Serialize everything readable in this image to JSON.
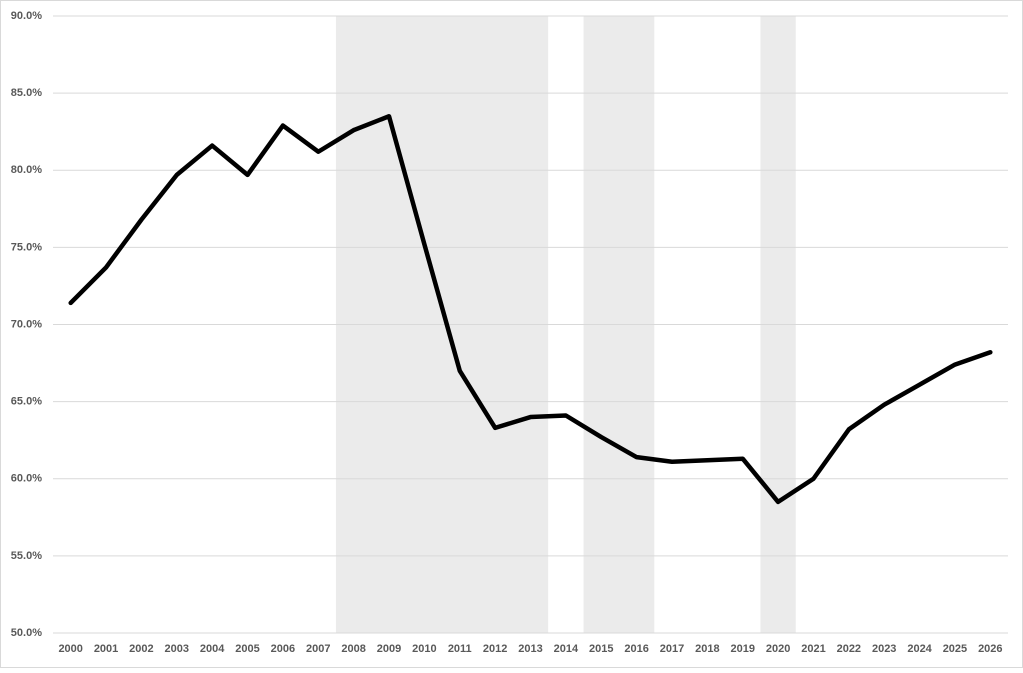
{
  "chart_data": {
    "type": "line",
    "categories": [
      "2000",
      "2001",
      "2002",
      "2003",
      "2004",
      "2005",
      "2006",
      "2007",
      "2008",
      "2009",
      "2010",
      "2011",
      "2012",
      "2013",
      "2014",
      "2015",
      "2016",
      "2017",
      "2018",
      "2019",
      "2020",
      "2021",
      "2022",
      "2023",
      "2024",
      "2025",
      "2026"
    ],
    "values": [
      71.4,
      73.7,
      76.8,
      79.7,
      81.6,
      79.7,
      82.9,
      81.2,
      82.6,
      83.5,
      75.2,
      67.0,
      63.3,
      64.0,
      64.1,
      62.7,
      61.4,
      61.1,
      61.2,
      61.3,
      58.5,
      60.0,
      63.2,
      64.8,
      66.1,
      67.4,
      68.2
    ],
    "color": "#000000",
    "shaded": [
      [
        "2008",
        "2013"
      ],
      [
        "2015",
        "2016"
      ],
      [
        "2020",
        "2020"
      ]
    ],
    "shade_color": "#ebebeb",
    "ylim": [
      50,
      90
    ],
    "yticks": [
      {
        "value": 50,
        "label": "50.0%"
      },
      {
        "value": 55,
        "label": "55.0%"
      },
      {
        "value": 60,
        "label": "60.0%"
      },
      {
        "value": 65,
        "label": "65.0%"
      },
      {
        "value": 70,
        "label": "70.0%"
      },
      {
        "value": 75,
        "label": "75.0%"
      },
      {
        "value": 80,
        "label": "80.0%"
      },
      {
        "value": 85,
        "label": "85.0%"
      },
      {
        "value": 90,
        "label": "90.0%"
      }
    ],
    "grid": true
  }
}
